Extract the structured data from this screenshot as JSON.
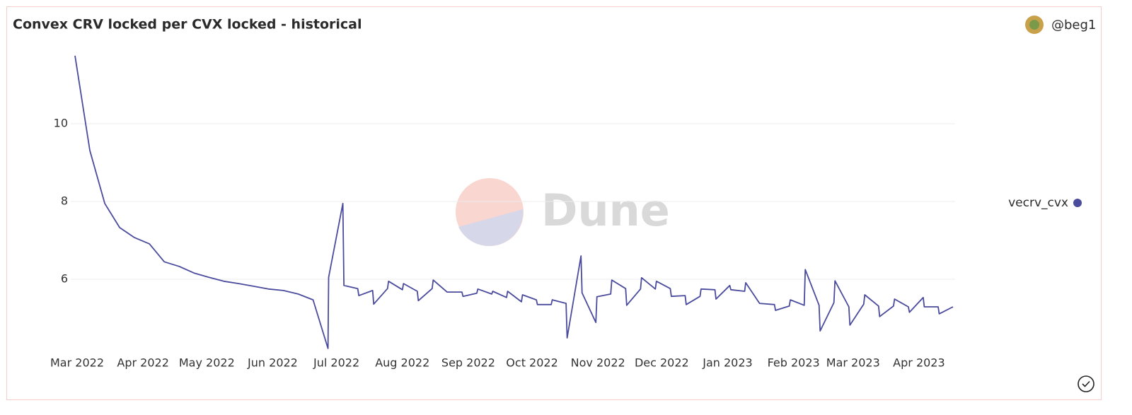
{
  "chart_data": {
    "type": "line",
    "title": "Convex CRV locked per CVX locked - historical",
    "author": "@beg1",
    "watermark": "Dune",
    "xlim": [
      -3,
      413
    ],
    "xticks": [
      {
        "value": 0,
        "label": "Mar 2022"
      },
      {
        "value": 31,
        "label": "Apr 2022"
      },
      {
        "value": 61,
        "label": "May 2022"
      },
      {
        "value": 92,
        "label": "Jun 2022"
      },
      {
        "value": 122,
        "label": "Jul 2022"
      },
      {
        "value": 153,
        "label": "Aug 2022"
      },
      {
        "value": 184,
        "label": "Sep 2022"
      },
      {
        "value": 214,
        "label": "Oct 2022"
      },
      {
        "value": 245,
        "label": "Nov 2022"
      },
      {
        "value": 275,
        "label": "Dec 2022"
      },
      {
        "value": 306,
        "label": "Jan 2023"
      },
      {
        "value": 337,
        "label": "Feb 2023"
      },
      {
        "value": 365,
        "label": "Mar 2023"
      },
      {
        "value": 396,
        "label": "Apr 2023"
      }
    ],
    "ylim": [
      4.1,
      12
    ],
    "yticks": [
      6,
      8,
      10
    ],
    "grid": true,
    "legend": "right",
    "x": [
      -1,
      6,
      13,
      20,
      27,
      34,
      41,
      48,
      55,
      62,
      69,
      76,
      83,
      90,
      97,
      104,
      111,
      118,
      118.3,
      125,
      125.5,
      132,
      132.5,
      139,
      139.5,
      146,
      146.5,
      153,
      153.5,
      160,
      160.5,
      167,
      167.5,
      174,
      181,
      181.5,
      188,
      188.5,
      195,
      195.5,
      202,
      202.5,
      209,
      209.5,
      216,
      216.5,
      223,
      223.5,
      230,
      230.5,
      237,
      237.5,
      244,
      244.5,
      251,
      251.5,
      258,
      258.5,
      265,
      265.5,
      272,
      272.5,
      279,
      279.5,
      286,
      286.5,
      293,
      293.5,
      300,
      300.5,
      307,
      307.5,
      314,
      314.5,
      321,
      328,
      328.5,
      335,
      335.5,
      342,
      342.5,
      349,
      349.5,
      356,
      356.5,
      363,
      363.5,
      370,
      370.5,
      377,
      377.5,
      384,
      384.5,
      391,
      391.5,
      398,
      398.5,
      405,
      405.5,
      412
    ],
    "series": [
      {
        "name": "vecrv_cvx",
        "color": "#4b4b9e",
        "values": [
          11.75,
          9.31,
          7.95,
          7.33,
          7.07,
          6.91,
          6.45,
          6.33,
          6.16,
          6.05,
          5.95,
          5.89,
          5.82,
          5.75,
          5.71,
          5.62,
          5.47,
          4.22,
          6.05,
          7.95,
          5.84,
          5.76,
          5.58,
          5.71,
          5.36,
          5.76,
          5.95,
          5.73,
          5.89,
          5.69,
          5.45,
          5.76,
          5.98,
          5.67,
          5.67,
          5.56,
          5.64,
          5.75,
          5.62,
          5.69,
          5.53,
          5.69,
          5.42,
          5.6,
          5.47,
          5.35,
          5.35,
          5.47,
          5.38,
          4.49,
          6.6,
          5.65,
          4.89,
          5.55,
          5.62,
          5.98,
          5.76,
          5.33,
          5.75,
          6.04,
          5.75,
          5.95,
          5.76,
          5.56,
          5.58,
          5.35,
          5.56,
          5.75,
          5.73,
          5.49,
          5.84,
          5.73,
          5.69,
          5.91,
          5.38,
          5.35,
          5.2,
          5.31,
          5.47,
          5.33,
          6.25,
          5.33,
          4.67,
          5.4,
          5.96,
          5.29,
          4.82,
          5.36,
          5.6,
          5.31,
          5.04,
          5.31,
          5.49,
          5.29,
          5.15,
          5.53,
          5.29,
          5.29,
          5.11,
          5.29
        ]
      }
    ]
  }
}
